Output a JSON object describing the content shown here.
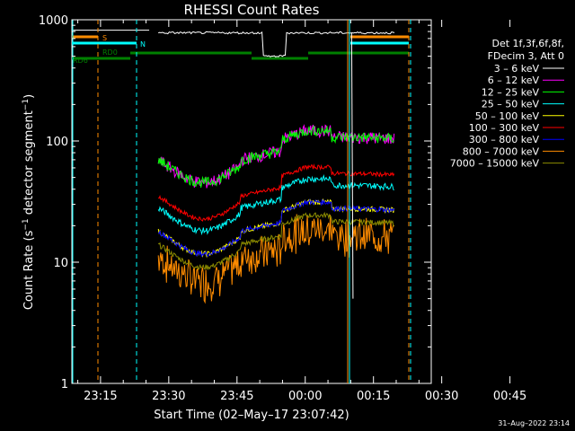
{
  "chart_data": {
    "type": "line",
    "title": "RHESSI Count Rates",
    "xlabel": "Start Time (02–May–17 23:07:42)",
    "ylabel": "Count Rate (s⁻¹ detector segment⁻¹)",
    "yscale": "log",
    "ylim": [
      1,
      1000
    ],
    "xlim_minutes": [
      1,
      80
    ],
    "x_ticks": [
      {
        "label": "23:15",
        "min": 7.3
      },
      {
        "label": "23:30",
        "min": 22.3
      },
      {
        "label": "23:45",
        "min": 37.3
      },
      {
        "label": "00:00",
        "min": 52.3
      },
      {
        "label": "00:15",
        "min": 67.3
      },
      {
        "label": "00:30",
        "min": 82.3
      },
      {
        "label": "00:45",
        "min": 97.3
      }
    ],
    "y_ticks": [
      {
        "label": "1",
        "value": 1
      },
      {
        "label": "10",
        "value": 10
      },
      {
        "label": "100",
        "value": 100
      },
      {
        "label": "1000",
        "value": 1000
      }
    ],
    "legend_header": [
      "Det 1f,3f,6f,8f,",
      "FDecim 3, Att 0"
    ],
    "legend_placement": "right",
    "series": [
      {
        "name": "3 – 6 keV",
        "color": "#ffffff"
      },
      {
        "name": "6 – 12 keV",
        "color": "#ff00ff"
      },
      {
        "name": "12 – 25 keV",
        "color": "#00ff00"
      },
      {
        "name": "25 – 50 keV",
        "color": "#00ffff"
      },
      {
        "name": "50 – 100 keV",
        "color": "#ffff00"
      },
      {
        "name": "100 – 300 keV",
        "color": "#ff0000"
      },
      {
        "name": "300 – 800 keV",
        "color": "#0000ff"
      },
      {
        "name": "800 – 7000 keV",
        "color": "#ff8c00"
      },
      {
        "name": "7000 – 15000 keV",
        "color": "#8b8b00"
      }
    ],
    "flag_bars": [
      {
        "label": "S",
        "color": "#ff8c00"
      },
      {
        "label": "N",
        "color": "#00ffff"
      },
      {
        "label": "RD0",
        "color": "#008000"
      },
      {
        "label": "RD6",
        "color": "#008000"
      }
    ],
    "timestamp": "31–Aug–2022 23:14"
  }
}
